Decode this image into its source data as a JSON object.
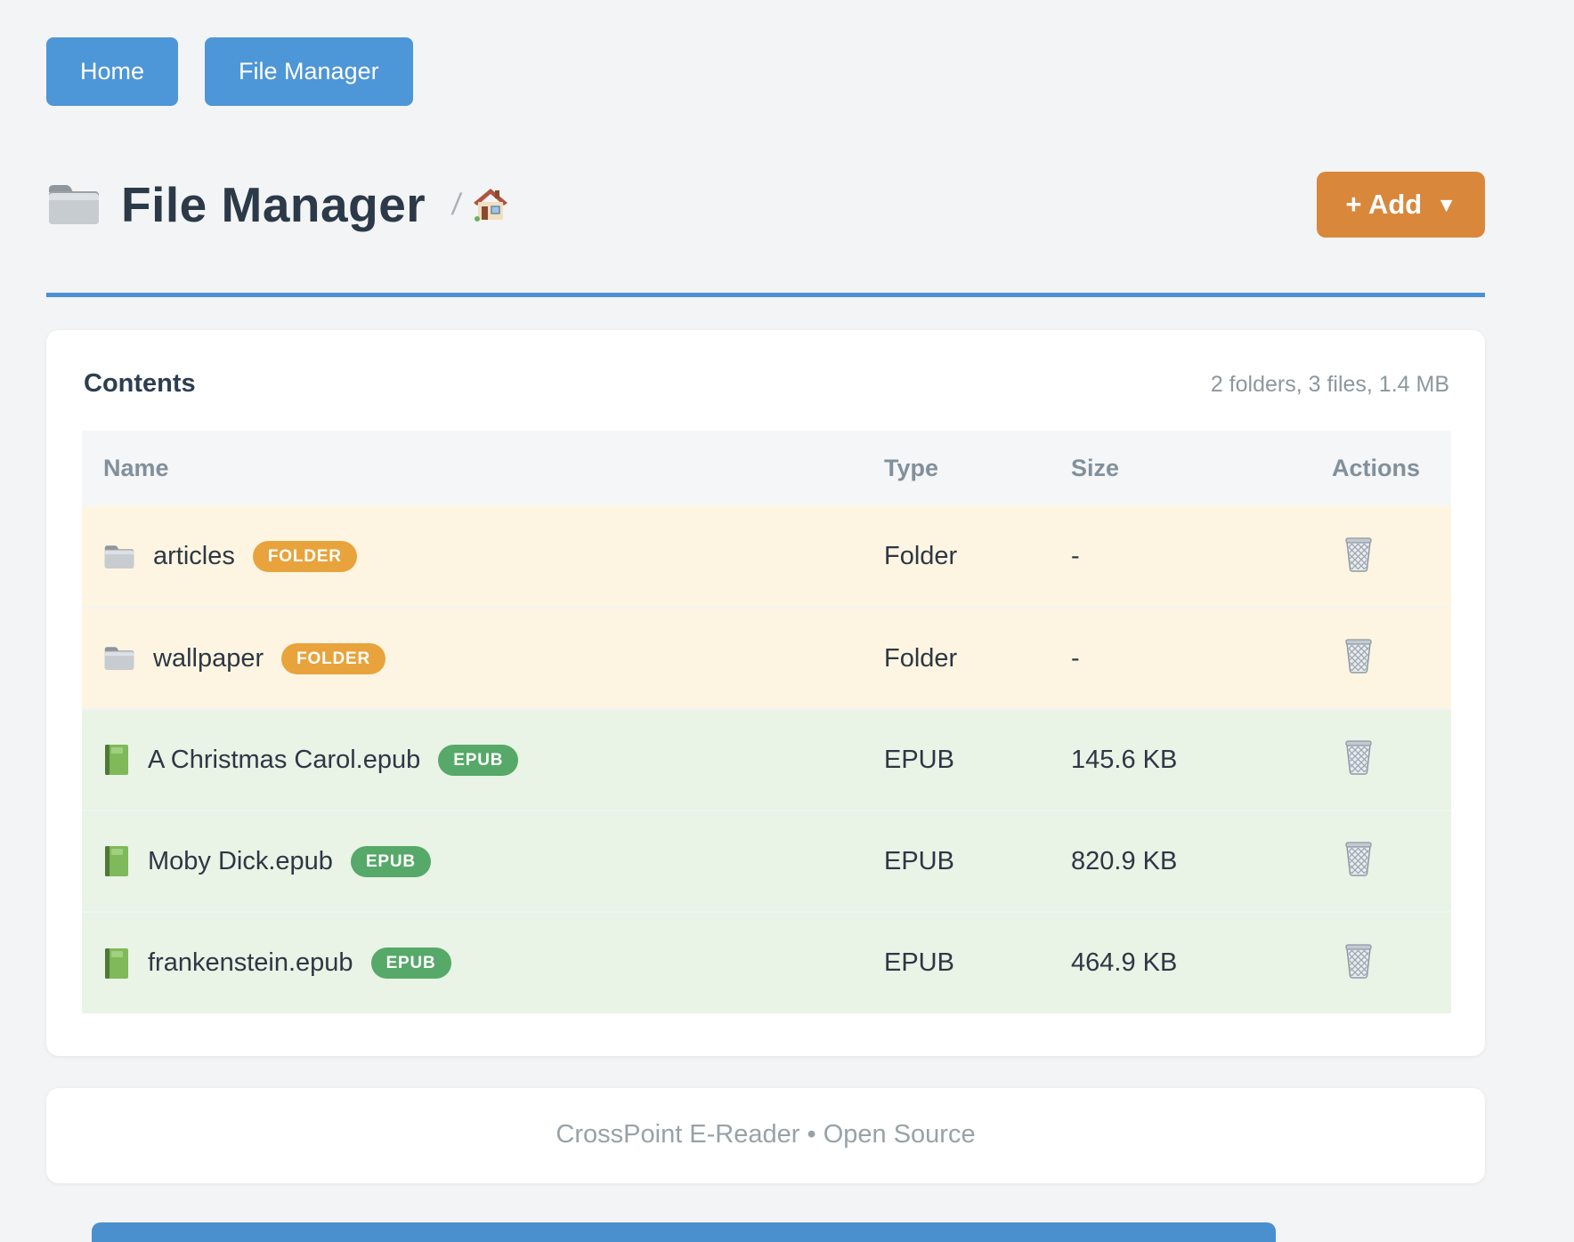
{
  "nav": {
    "home_label": "Home",
    "file_manager_label": "File Manager"
  },
  "header": {
    "title": "File Manager",
    "breadcrumb_separator": "/",
    "add_label": "+ Add",
    "add_caret": "▼"
  },
  "contents": {
    "heading": "Contents",
    "summary": "2 folders, 3 files, 1.4 MB",
    "columns": [
      "Name",
      "Type",
      "Size",
      "Actions"
    ],
    "rows": [
      {
        "name": "articles",
        "badge": "FOLDER",
        "type": "Folder",
        "size": "-",
        "kind": "folder"
      },
      {
        "name": "wallpaper",
        "badge": "FOLDER",
        "type": "Folder",
        "size": "-",
        "kind": "folder"
      },
      {
        "name": "A Christmas Carol.epub",
        "badge": "EPUB",
        "type": "EPUB",
        "size": "145.6 KB",
        "kind": "epub"
      },
      {
        "name": "Moby Dick.epub",
        "badge": "EPUB",
        "type": "EPUB",
        "size": "820.9 KB",
        "kind": "epub"
      },
      {
        "name": "frankenstein.epub",
        "badge": "EPUB",
        "type": "EPUB",
        "size": "464.9 KB",
        "kind": "epub"
      }
    ]
  },
  "footer": {
    "text": "CrossPoint E-Reader • Open Source"
  },
  "colors": {
    "nav_button_blue": "#4d96d7",
    "accent_rule_blue": "#4a90d9",
    "add_button_orange": "#d9873b",
    "badge_folder_orange": "#e8a33c",
    "badge_epub_green": "#56a968",
    "row_folder_bg": "#fdf5e1",
    "row_epub_bg": "#e9f3e6",
    "title_text": "#2b3948"
  }
}
